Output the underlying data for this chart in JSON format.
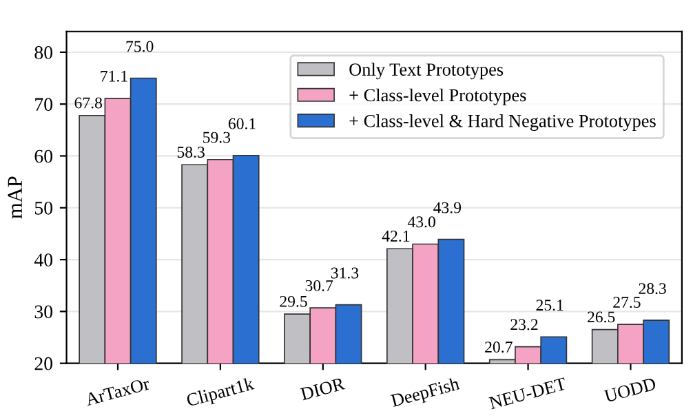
{
  "chart_data": {
    "type": "bar",
    "ylabel": "mAP",
    "categories": [
      "ArTaxOr",
      "Clipart1k",
      "DIOR",
      "DeepFish",
      "NEU-DET",
      "UODD"
    ],
    "series": [
      {
        "name": "Only Text Prototypes",
        "color": "#c0c0c4",
        "values": [
          67.8,
          58.3,
          29.5,
          42.1,
          20.7,
          26.5
        ],
        "value_labels": [
          "67.8",
          "58.3",
          "29.5",
          "42.1",
          "20.7",
          "26.5"
        ]
      },
      {
        "name": "+ Class-level Prototypes",
        "color": "#f4a3c4",
        "values": [
          71.1,
          59.3,
          30.7,
          43.0,
          23.2,
          27.5
        ],
        "value_labels": [
          "71.1",
          "59.3",
          "30.7",
          "43.0",
          "23.2",
          "27.5"
        ]
      },
      {
        "name": "+ Class-level & Hard Negative Prototypes",
        "color": "#2b6fd0",
        "values": [
          75.0,
          60.1,
          31.3,
          43.9,
          25.1,
          28.3
        ],
        "value_labels": [
          "75.0",
          "60.1",
          "31.3",
          "43.9",
          "25.1",
          "28.3"
        ]
      }
    ],
    "ylim": [
      20,
      84
    ],
    "yticks": [
      20,
      30,
      40,
      50,
      60,
      70,
      80
    ],
    "grid": "y",
    "legend": "top right"
  }
}
